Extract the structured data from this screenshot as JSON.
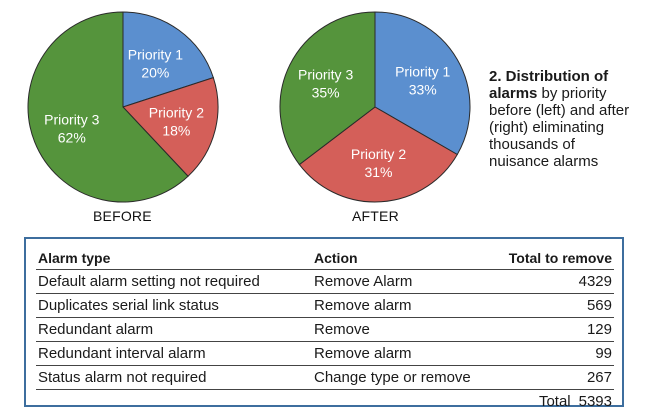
{
  "chart_data": [
    {
      "type": "pie",
      "caption": "BEFORE",
      "slices": [
        {
          "label": "Priority 1",
          "value": 20,
          "value_label": "20%",
          "color": "#5b8fcf"
        },
        {
          "label": "Priority 2",
          "value": 18,
          "value_label": "18%",
          "color": "#d45f59"
        },
        {
          "label": "Priority 3",
          "value": 62,
          "value_label": "62%",
          "color": "#55943c"
        }
      ]
    },
    {
      "type": "pie",
      "caption": "AFTER",
      "slices": [
        {
          "label": "Priority 1",
          "value": 33,
          "value_label": "33%",
          "color": "#5b8fcf"
        },
        {
          "label": "Priority 2",
          "value": 31,
          "value_label": "31%",
          "color": "#d45f59"
        },
        {
          "label": "Priority 3",
          "value": 35,
          "value_label": "35%",
          "color": "#55943c"
        }
      ]
    }
  ],
  "figure_caption": {
    "title": "2. Distribution of alarms",
    "text": " by priority before (left) and after (right) eliminating thousands of nuisance alarms"
  },
  "table": {
    "headers": [
      "Alarm type",
      "Action",
      "Total to remove"
    ],
    "rows": [
      [
        "Default alarm setting not required",
        "Remove Alarm",
        "4329"
      ],
      [
        "Duplicates serial link status",
        "Remove alarm",
        "569"
      ],
      [
        "Redundant alarm",
        "Remove",
        "129"
      ],
      [
        "Redundant interval alarm",
        "Remove alarm",
        "99"
      ],
      [
        "Status alarm not required",
        "Change type or remove",
        "267"
      ]
    ],
    "total_label": "Total",
    "total_value": "5393"
  },
  "colors": {
    "border": "#3d6e9e"
  }
}
